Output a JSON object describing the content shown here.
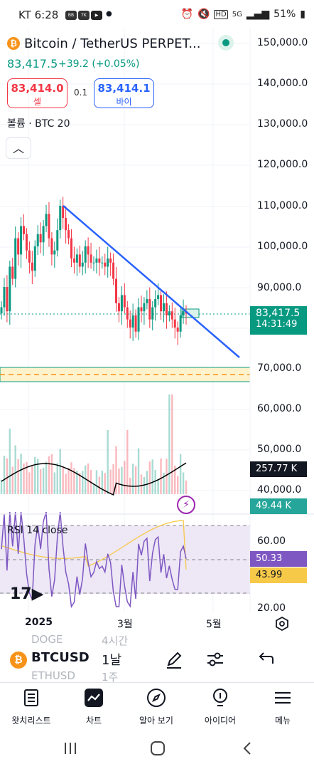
{
  "status_bar": {
    "carrier_time": "KT 6:28",
    "apps": [
      "BYBIT",
      "TALK"
    ],
    "network": "5G",
    "battery": "51%"
  },
  "header": {
    "symbol_title": "Bitcoin / TetherUS PERPET...",
    "coin_glyph": "₿",
    "last_price": "83,417.5",
    "change": "+39.2 (+0.05%)"
  },
  "trade": {
    "sell_price": "83,414.0",
    "sell_label": "셀",
    "spread": "0.1",
    "buy_price": "83,414.1",
    "buy_label": "바이"
  },
  "volume_legend": "볼륨 · BTC 20",
  "price_axis": [
    "150,000.0",
    "140,000.0",
    "130,000.0",
    "120,000.0",
    "110,000.0",
    "100,000.0",
    "90,000.0",
    "70,000.0",
    "60,000.0",
    "50,000.0",
    "40,000.0"
  ],
  "price_tag": {
    "price": "83,417.5",
    "countdown": "14:31:49"
  },
  "volume_tags": {
    "vol_ma": "257.77 K",
    "vol": "49.44 K"
  },
  "rsi": {
    "legend": "RSI 14 close",
    "axis": [
      "60.00",
      "20.00"
    ],
    "value": "50.33",
    "ma_value": "43.99"
  },
  "time_axis": {
    "year": "2025",
    "march": "3월",
    "may": "5월"
  },
  "toolbar": {
    "ghost_symbols": [
      "DOGE",
      "ETHUSD"
    ],
    "ghost_intervals": [
      "4시간",
      "1주"
    ],
    "symbol": "BTCUSD",
    "symbol_glyph": "₿",
    "interval": "1날"
  },
  "nav": {
    "items": [
      "왓치리스트",
      "차트",
      "알아 보기",
      "아이디어",
      "메뉴"
    ]
  },
  "colors": {
    "up": "#089981",
    "down": "#f23645",
    "trendline": "#2962ff",
    "rsi_line": "#7e57c2",
    "rsi_ma": "#f7c948",
    "vol_ma": "#000000"
  },
  "chart_data": {
    "type": "candlestick",
    "price_series": {
      "description_units": "USD",
      "close": [
        85000,
        90000,
        84000,
        95000,
        92000,
        102000,
        98000,
        105000,
        103000,
        99000,
        96000,
        94000,
        100000,
        103000,
        101000,
        105000,
        108000,
        102000,
        98000,
        99000,
        104000,
        110000,
        107000,
        104000,
        102000,
        97000,
        96000,
        98000,
        95000,
        96000,
        100000,
        98000,
        96000,
        96000,
        97000,
        96000,
        96000,
        95000,
        97000,
        96000,
        92000,
        86000,
        84000,
        88000,
        85000,
        82000,
        80000,
        83000,
        79000,
        85000,
        84000,
        86000,
        87000,
        82000,
        85000,
        87000,
        88000,
        84000,
        86000,
        83000,
        84000,
        82000,
        80000,
        79000,
        83000,
        84000,
        83417
      ]
    },
    "ylim": [
      40000,
      150000
    ],
    "trendline": {
      "from": [
        110000,
        "2025-01-20"
      ],
      "to": [
        74000,
        "2025-04-25"
      ]
    },
    "volume_ma": "257.77 K",
    "rsi": {
      "value": 50.33,
      "ma": 43.99,
      "levels": [
        70,
        30
      ]
    }
  }
}
